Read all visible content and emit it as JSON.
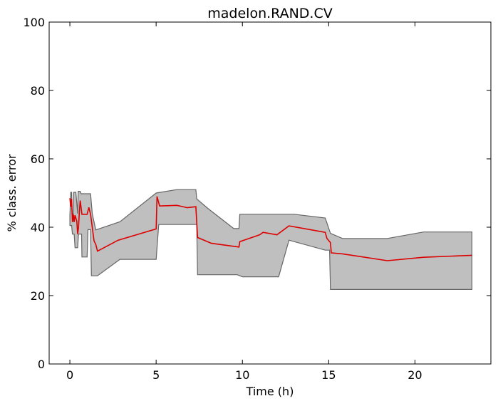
{
  "chart_data": {
    "type": "area",
    "title": "madelon.RAND.CV",
    "xlabel": "Time (h)",
    "ylabel": "% class. error",
    "xlim": [
      -1.2,
      24.4
    ],
    "ylim": [
      0,
      100
    ],
    "xticks": [
      0,
      5,
      10,
      15,
      20
    ],
    "yticks": [
      0,
      20,
      40,
      60,
      80,
      100
    ],
    "grid": false,
    "colors": {
      "line": "#dd0000",
      "band_fill": "#bfbfbf",
      "band_edge": "#666666"
    },
    "band": {
      "upper": [
        [
          0.0,
          43.5
        ],
        [
          0.05,
          50.2
        ],
        [
          0.1,
          50.2
        ],
        [
          0.12,
          44.0
        ],
        [
          0.2,
          44.0
        ],
        [
          0.22,
          50.2
        ],
        [
          0.35,
          50.2
        ],
        [
          0.4,
          47.0
        ],
        [
          0.45,
          44.0
        ],
        [
          0.48,
          50.5
        ],
        [
          0.6,
          50.5
        ],
        [
          0.65,
          49.8
        ],
        [
          1.0,
          49.8
        ],
        [
          1.2,
          49.8
        ],
        [
          1.3,
          44.0
        ],
        [
          1.5,
          39.2
        ],
        [
          2.9,
          41.6
        ],
        [
          5.0,
          50.0
        ],
        [
          6.2,
          51.0
        ],
        [
          7.3,
          51.0
        ],
        [
          7.35,
          48.3
        ],
        [
          8.0,
          45.5
        ],
        [
          9.5,
          39.6
        ],
        [
          9.8,
          39.6
        ],
        [
          9.85,
          43.8
        ],
        [
          12.5,
          43.8
        ],
        [
          13.0,
          43.8
        ],
        [
          14.8,
          42.7
        ],
        [
          15.1,
          38.2
        ],
        [
          15.8,
          36.7
        ],
        [
          16.5,
          36.7
        ],
        [
          18.4,
          36.7
        ],
        [
          20.5,
          38.6
        ],
        [
          23.3,
          38.6
        ]
      ],
      "lower": [
        [
          23.3,
          21.8
        ],
        [
          15.1,
          21.8
        ],
        [
          15.05,
          33.3
        ],
        [
          14.8,
          33.3
        ],
        [
          12.7,
          36.2
        ],
        [
          12.1,
          25.5
        ],
        [
          10.0,
          25.5
        ],
        [
          9.7,
          26.1
        ],
        [
          7.4,
          26.1
        ],
        [
          7.35,
          40.8
        ],
        [
          5.15,
          40.8
        ],
        [
          5.0,
          30.6
        ],
        [
          2.9,
          30.6
        ],
        [
          1.6,
          25.8
        ],
        [
          1.25,
          25.8
        ],
        [
          1.2,
          39.3
        ],
        [
          1.05,
          39.3
        ],
        [
          1.0,
          31.3
        ],
        [
          0.7,
          31.3
        ],
        [
          0.68,
          38.0
        ],
        [
          0.5,
          38.0
        ],
        [
          0.45,
          34.0
        ],
        [
          0.3,
          34.0
        ],
        [
          0.25,
          38.0
        ],
        [
          0.15,
          38.0
        ],
        [
          0.1,
          40.5
        ],
        [
          0.0,
          40.5
        ]
      ]
    },
    "line": [
      [
        0.0,
        48.5
      ],
      [
        0.05,
        46.0
      ],
      [
        0.1,
        48.3
      ],
      [
        0.15,
        41.5
      ],
      [
        0.2,
        43.8
      ],
      [
        0.25,
        41.5
      ],
      [
        0.3,
        43.5
      ],
      [
        0.4,
        41.8
      ],
      [
        0.45,
        38.0
      ],
      [
        0.5,
        40.0
      ],
      [
        0.55,
        44.5
      ],
      [
        0.6,
        47.8
      ],
      [
        0.7,
        43.8
      ],
      [
        1.0,
        43.8
      ],
      [
        1.1,
        45.8
      ],
      [
        1.2,
        43.8
      ],
      [
        1.3,
        40.0
      ],
      [
        1.4,
        36.0
      ],
      [
        1.5,
        35.0
      ],
      [
        1.6,
        33.0
      ],
      [
        2.8,
        36.2
      ],
      [
        5.0,
        39.5
      ],
      [
        5.05,
        49.0
      ],
      [
        5.2,
        46.2
      ],
      [
        6.2,
        46.4
      ],
      [
        6.8,
        45.7
      ],
      [
        7.3,
        46.0
      ],
      [
        7.4,
        37.0
      ],
      [
        8.2,
        35.3
      ],
      [
        9.8,
        34.2
      ],
      [
        9.85,
        35.8
      ],
      [
        11.0,
        37.8
      ],
      [
        11.2,
        38.5
      ],
      [
        12.0,
        37.8
      ],
      [
        12.7,
        40.4
      ],
      [
        14.8,
        38.5
      ],
      [
        14.9,
        36.7
      ],
      [
        15.1,
        35.5
      ],
      [
        15.15,
        32.5
      ],
      [
        15.8,
        32.2
      ],
      [
        18.4,
        30.2
      ],
      [
        20.5,
        31.2
      ],
      [
        23.3,
        31.8
      ]
    ]
  }
}
